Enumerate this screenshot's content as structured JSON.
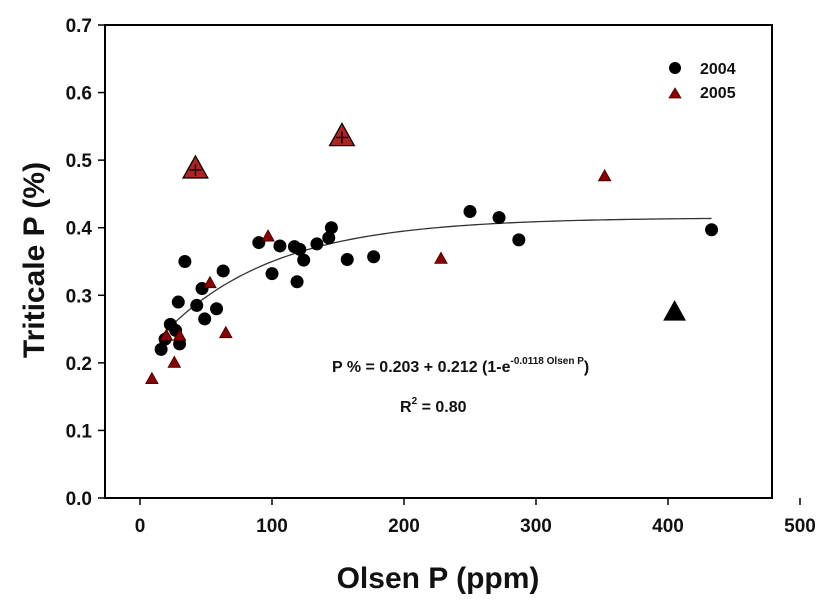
{
  "chart_data": {
    "type": "scatter",
    "title": "",
    "xlabel": "Olsen P (ppm)",
    "ylabel": "Triticale P (%)",
    "xlim": [
      0,
      500
    ],
    "ylim": [
      0,
      0.7
    ],
    "x_ticks": [
      "0",
      "100",
      "200",
      "300",
      "400",
      "500"
    ],
    "y_ticks": [
      "0.0",
      "0.1",
      "0.2",
      "0.3",
      "0.4",
      "0.5",
      "0.6",
      "0.7"
    ],
    "grid": false,
    "legend_position": "top-right",
    "series": [
      {
        "name": "2004",
        "marker": "circle",
        "color": "#000000",
        "points": [
          [
            16,
            0.22
          ],
          [
            19,
            0.235
          ],
          [
            23,
            0.257
          ],
          [
            27,
            0.248
          ],
          [
            29,
            0.29
          ],
          [
            30,
            0.228
          ],
          [
            34,
            0.35
          ],
          [
            43,
            0.285
          ],
          [
            47,
            0.31
          ],
          [
            49,
            0.265
          ],
          [
            58,
            0.28
          ],
          [
            63,
            0.336
          ],
          [
            90,
            0.378
          ],
          [
            100,
            0.332
          ],
          [
            106,
            0.373
          ],
          [
            117,
            0.372
          ],
          [
            119,
            0.32
          ],
          [
            121,
            0.368
          ],
          [
            124,
            0.352
          ],
          [
            134,
            0.376
          ],
          [
            143,
            0.385
          ],
          [
            145,
            0.4
          ],
          [
            157,
            0.353
          ],
          [
            177,
            0.357
          ],
          [
            250,
            0.424
          ],
          [
            272,
            0.415
          ],
          [
            287,
            0.382
          ],
          [
            433,
            0.397
          ]
        ]
      },
      {
        "name": "2005",
        "marker": "triangle",
        "color": "#8b0000",
        "points": [
          [
            9,
            0.176
          ],
          [
            20,
            0.24
          ],
          [
            26,
            0.2
          ],
          [
            30,
            0.24
          ],
          [
            53,
            0.318
          ],
          [
            65,
            0.244
          ],
          [
            97,
            0.387
          ],
          [
            228,
            0.354
          ],
          [
            352,
            0.476
          ]
        ]
      }
    ],
    "outliers": [
      {
        "marker": "triangle-crossed",
        "color": "#b22222",
        "x": 42,
        "y": 0.487
      },
      {
        "marker": "triangle-crossed",
        "color": "#b22222",
        "x": 153,
        "y": 0.535
      },
      {
        "marker": "triangle",
        "color": "#000000",
        "x": 405,
        "y": 0.275
      }
    ],
    "fit": {
      "y0": 0.203,
      "a": 0.212,
      "b": 0.0118,
      "x_range": [
        18,
        433
      ],
      "equation_main": "P % = 0.203 + 0.212 (1-e",
      "equation_sup": "-0.0118 Olsen P",
      "equation_end": ")",
      "r2_prefix": "R",
      "r2_sup": "2",
      "r2_suffix": " = 0.80"
    }
  }
}
